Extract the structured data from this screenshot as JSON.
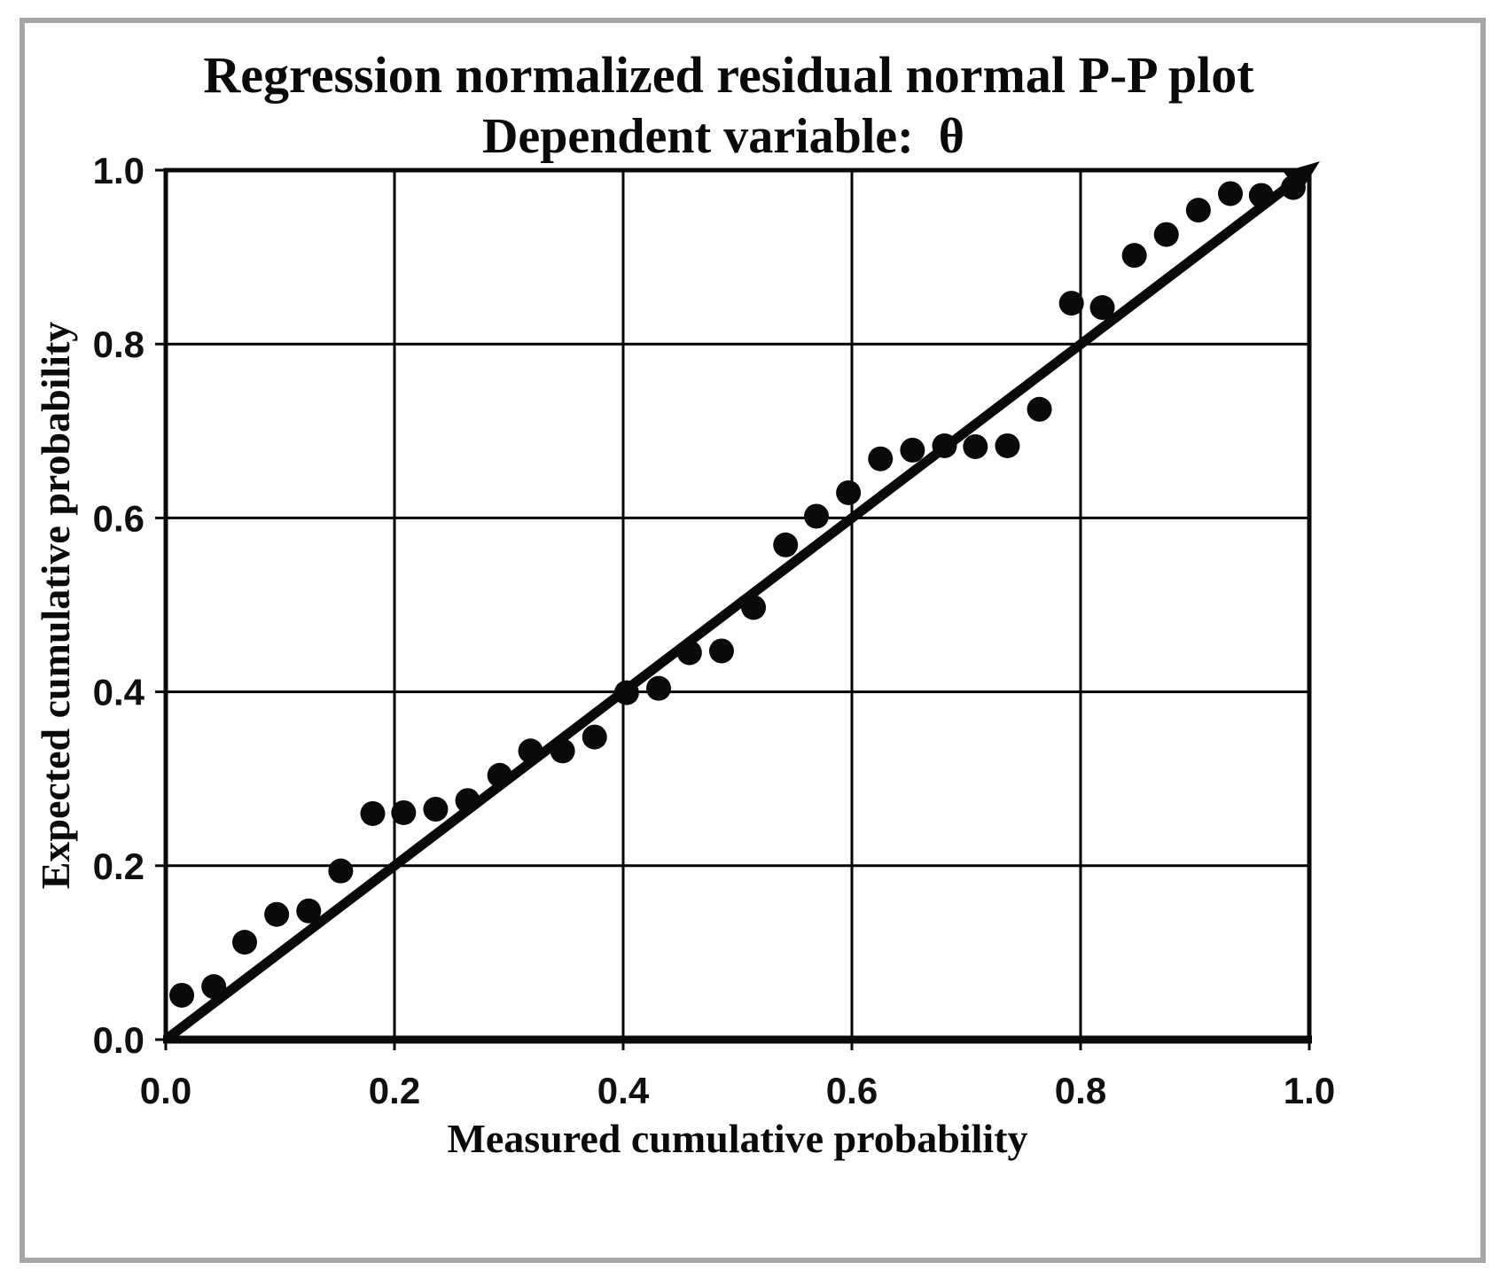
{
  "window": {
    "background": "#ffffff",
    "outer_frame_color": "#a6a6a6"
  },
  "colors": {
    "ink": "#0a0a0a",
    "grid": "#000000",
    "point": "#0a0a0a",
    "reference_line": "#0a0a0a"
  },
  "chart_data": {
    "type": "scatter",
    "title_line1": "Regression normalized residual normal P-P plot",
    "title_line2": "Dependent variable:  θ",
    "xlabel": "Measured cumulative probability",
    "ylabel": "Expected cumulative probability",
    "xlim": [
      0.0,
      1.0
    ],
    "ylim": [
      0.0,
      1.0
    ],
    "grid": true,
    "xticks": [
      0.0,
      0.2,
      0.4,
      0.6,
      0.8,
      1.0
    ],
    "yticks": [
      0.0,
      0.2,
      0.4,
      0.6,
      0.8,
      1.0
    ],
    "xtick_labels": [
      "0.0",
      "0.2",
      "0.4",
      "0.6",
      "0.8",
      "1.0"
    ],
    "ytick_labels": [
      "0.0",
      "0.2",
      "0.4",
      "0.6",
      "0.8",
      "1.0"
    ],
    "reference_line": {
      "from": [
        0.0,
        0.0
      ],
      "to": [
        1.0,
        1.0
      ],
      "arrow_at_end": true
    },
    "points": [
      [
        0.014,
        0.051
      ],
      [
        0.042,
        0.061
      ],
      [
        0.069,
        0.112
      ],
      [
        0.097,
        0.144
      ],
      [
        0.125,
        0.148
      ],
      [
        0.153,
        0.194
      ],
      [
        0.181,
        0.26
      ],
      [
        0.208,
        0.261
      ],
      [
        0.236,
        0.265
      ],
      [
        0.264,
        0.275
      ],
      [
        0.292,
        0.304
      ],
      [
        0.319,
        0.332
      ],
      [
        0.347,
        0.332
      ],
      [
        0.375,
        0.348
      ],
      [
        0.403,
        0.399
      ],
      [
        0.431,
        0.404
      ],
      [
        0.458,
        0.445
      ],
      [
        0.486,
        0.447
      ],
      [
        0.514,
        0.497
      ],
      [
        0.542,
        0.569
      ],
      [
        0.569,
        0.602
      ],
      [
        0.597,
        0.629
      ],
      [
        0.625,
        0.668
      ],
      [
        0.653,
        0.678
      ],
      [
        0.681,
        0.683
      ],
      [
        0.708,
        0.682
      ],
      [
        0.736,
        0.683
      ],
      [
        0.764,
        0.725
      ],
      [
        0.792,
        0.847
      ],
      [
        0.819,
        0.842
      ],
      [
        0.847,
        0.902
      ],
      [
        0.875,
        0.926
      ],
      [
        0.903,
        0.954
      ],
      [
        0.931,
        0.973
      ],
      [
        0.958,
        0.971
      ],
      [
        0.986,
        0.98
      ]
    ]
  }
}
